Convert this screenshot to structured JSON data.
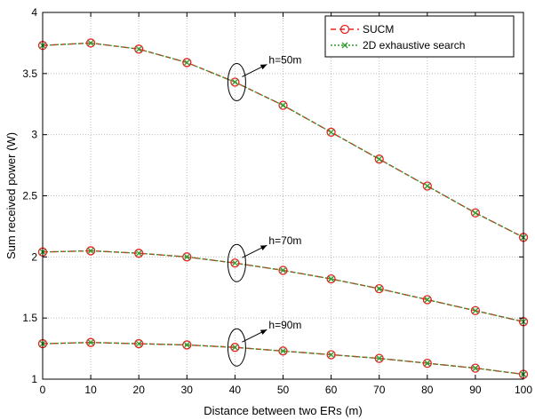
{
  "chart_data": {
    "type": "line",
    "title": "",
    "xlabel": "Distance between two ERs (m)",
    "ylabel": "Sum received power (W)",
    "xlim": [
      0,
      100
    ],
    "ylim": [
      1,
      4
    ],
    "xticks": [
      0,
      10,
      20,
      30,
      40,
      50,
      60,
      70,
      80,
      90,
      100
    ],
    "xtick_labels": [
      "0",
      "10",
      "20",
      "30",
      "40",
      "50",
      "60",
      "70",
      "80",
      "90",
      "100"
    ],
    "yticks": [
      1,
      1.5,
      2,
      2.5,
      3,
      3.5,
      4
    ],
    "ytick_labels": [
      "1",
      "1.5",
      "2",
      "2.5",
      "3",
      "3.5",
      "4"
    ],
    "grid": true,
    "legend_position": "top-right",
    "legend": [
      {
        "label": "SUCM",
        "color": "#e8231f",
        "linestyle": "dashed",
        "marker": "circle-open"
      },
      {
        "label": "2D exhaustive search",
        "color": "#2f9b2f",
        "linestyle": "dotted",
        "marker": "x"
      }
    ],
    "x": [
      0,
      10,
      20,
      30,
      40,
      50,
      60,
      70,
      80,
      90,
      100
    ],
    "groups": [
      {
        "annotation": "h=50m",
        "sucm": [
          3.73,
          3.75,
          3.7,
          3.59,
          3.43,
          3.24,
          3.02,
          2.8,
          2.58,
          2.36,
          2.16
        ],
        "exhaustive": [
          3.73,
          3.75,
          3.7,
          3.59,
          3.43,
          3.24,
          3.02,
          2.8,
          2.58,
          2.36,
          2.16
        ]
      },
      {
        "annotation": "h=70m",
        "sucm": [
          2.04,
          2.05,
          2.03,
          2.0,
          1.95,
          1.89,
          1.82,
          1.74,
          1.65,
          1.56,
          1.47
        ],
        "exhaustive": [
          2.04,
          2.05,
          2.03,
          2.0,
          1.95,
          1.89,
          1.82,
          1.74,
          1.65,
          1.56,
          1.47
        ]
      },
      {
        "annotation": "h=90m",
        "sucm": [
          1.29,
          1.3,
          1.29,
          1.28,
          1.26,
          1.23,
          1.2,
          1.17,
          1.13,
          1.09,
          1.04
        ],
        "exhaustive": [
          1.29,
          1.3,
          1.29,
          1.28,
          1.26,
          1.23,
          1.2,
          1.17,
          1.13,
          1.09,
          1.04
        ]
      }
    ]
  }
}
